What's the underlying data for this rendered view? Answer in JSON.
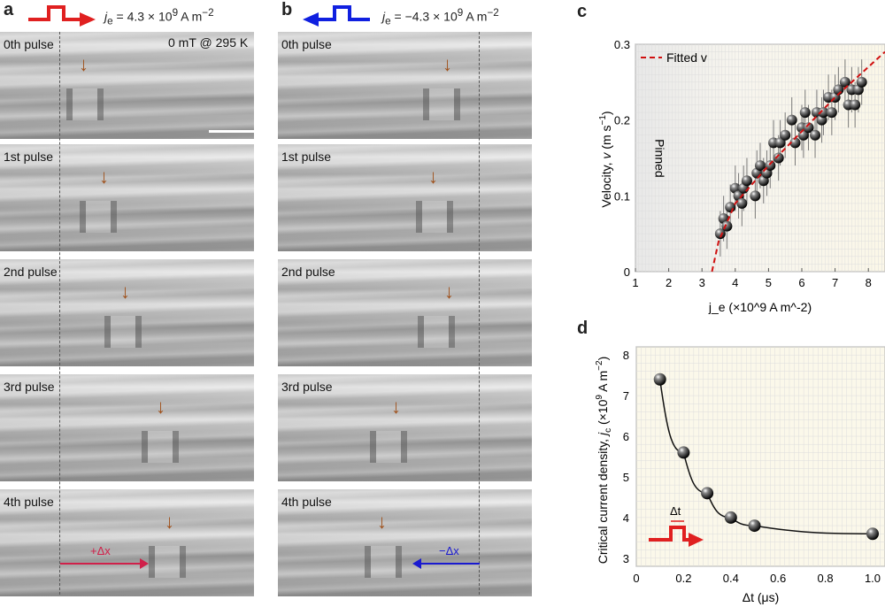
{
  "panel_a": {
    "letter": "a",
    "current": "j",
    "current_sub": "e",
    "current_value": "= 4.3 × 10",
    "exp": "9",
    "unit": " A m",
    "unit_exp": "−2",
    "condition": "0 mT @ 295 K",
    "shift": "+Δx",
    "pulses": [
      "0th pulse",
      "1st pulse",
      "2nd pulse",
      "3rd pulse",
      "4th pulse"
    ],
    "arrow_color": "#e02020"
  },
  "panel_b": {
    "letter": "b",
    "current": "j",
    "current_sub": "e",
    "current_value": "= −4.3 × 10",
    "exp": "9",
    "unit": " A m",
    "unit_exp": "−2",
    "shift": "−Δx",
    "pulses": [
      "0th pulse",
      "1st pulse",
      "2nd pulse",
      "3rd pulse",
      "4th pulse"
    ],
    "arrow_color": "#1020e0"
  },
  "chart_data": [
    {
      "panel": "c",
      "type": "scatter",
      "title": "",
      "xlabel": "j_e (×10^9 A m^-2)",
      "ylabel": "Velocity, v (m s^-1)",
      "xlim": [
        1,
        8.5
      ],
      "ylim": [
        0,
        0.3
      ],
      "xticks": [
        "1",
        "2",
        "3",
        "4",
        "5",
        "6",
        "7",
        "8"
      ],
      "yticks": [
        "0",
        "0.1",
        "0.2",
        "0.3"
      ],
      "legend": "Fitted v",
      "legend_placement": "top-left",
      "annotation": "Pinned",
      "points": [
        [
          3.55,
          0.05
        ],
        [
          3.65,
          0.07
        ],
        [
          3.75,
          0.06
        ],
        [
          3.85,
          0.085
        ],
        [
          4.0,
          0.11
        ],
        [
          4.1,
          0.1
        ],
        [
          4.2,
          0.09
        ],
        [
          4.25,
          0.11
        ],
        [
          4.35,
          0.12
        ],
        [
          4.6,
          0.1
        ],
        [
          4.65,
          0.13
        ],
        [
          4.75,
          0.14
        ],
        [
          4.85,
          0.12
        ],
        [
          4.95,
          0.13
        ],
        [
          5.05,
          0.14
        ],
        [
          5.15,
          0.17
        ],
        [
          5.3,
          0.15
        ],
        [
          5.35,
          0.17
        ],
        [
          5.5,
          0.18
        ],
        [
          5.7,
          0.2
        ],
        [
          5.8,
          0.17
        ],
        [
          6.0,
          0.19
        ],
        [
          6.05,
          0.18
        ],
        [
          6.1,
          0.21
        ],
        [
          6.2,
          0.19
        ],
        [
          6.4,
          0.18
        ],
        [
          6.45,
          0.21
        ],
        [
          6.6,
          0.2
        ],
        [
          6.65,
          0.21
        ],
        [
          6.8,
          0.23
        ],
        [
          6.9,
          0.21
        ],
        [
          7.0,
          0.23
        ],
        [
          7.1,
          0.24
        ],
        [
          7.3,
          0.25
        ],
        [
          7.4,
          0.22
        ],
        [
          7.5,
          0.24
        ],
        [
          7.6,
          0.22
        ],
        [
          7.7,
          0.24
        ],
        [
          7.8,
          0.25
        ]
      ],
      "error": 0.03,
      "fit": [
        [
          3.3,
          0
        ],
        [
          3.5,
          0.04
        ],
        [
          4,
          0.09
        ],
        [
          5,
          0.14
        ],
        [
          6,
          0.185
        ],
        [
          7,
          0.23
        ],
        [
          8.5,
          0.29
        ]
      ]
    },
    {
      "panel": "d",
      "type": "line",
      "title": "",
      "xlabel": "Δt (μs)",
      "ylabel": "Critical current density, j_c (×10^9 A m^-2)",
      "xlim": [
        0,
        1.05
      ],
      "ylim": [
        2.8,
        8.2
      ],
      "xticks": [
        "0",
        "0.2",
        "0.4",
        "0.6",
        "0.8",
        "1.0"
      ],
      "yticks": [
        "3",
        "4",
        "5",
        "6",
        "7",
        "8"
      ],
      "inset_label": "Δt",
      "x": [
        0.1,
        0.2,
        0.3,
        0.4,
        0.5,
        1.0
      ],
      "y": [
        7.4,
        5.6,
        4.6,
        4.0,
        3.8,
        3.6
      ]
    }
  ],
  "labels": {
    "c": "c",
    "d": "d"
  }
}
